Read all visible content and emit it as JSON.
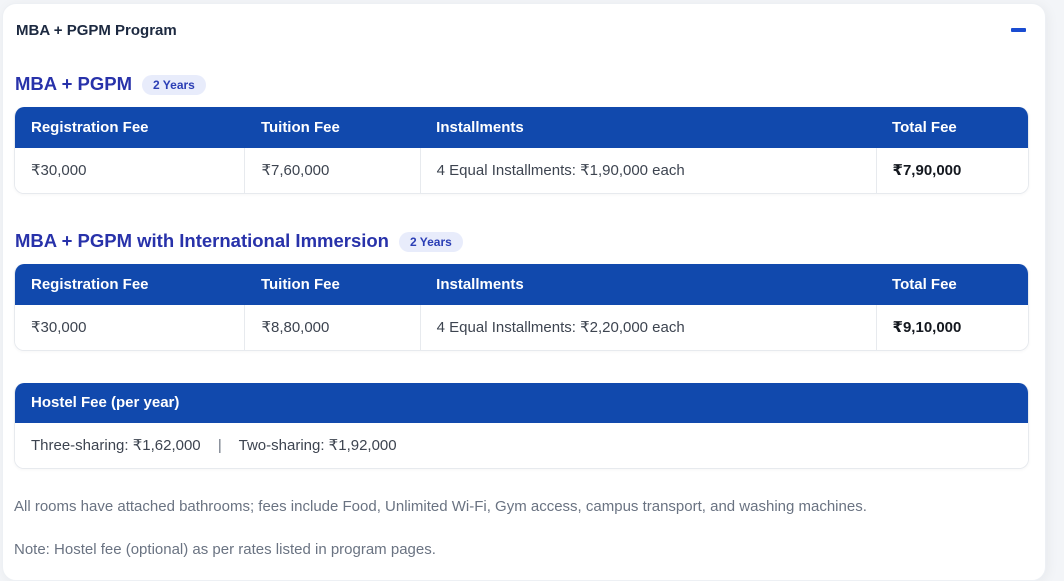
{
  "accordion": {
    "title": "MBA + PGPM Program",
    "state": "expanded",
    "collapse_icon": "minus-icon"
  },
  "colors": {
    "table_header_blue": "#1149ad",
    "section_title_blue": "#2832aa",
    "badge_bg": "#e8ecfb",
    "badge_text": "#2b3eb5",
    "minus_icon_blue": "#1a4cd1",
    "body_text": "#3d4450",
    "muted_text": "#6a7382"
  },
  "sections": [
    {
      "title": "MBA + PGPM",
      "badge": "2 Years",
      "table": {
        "headers": [
          "Registration Fee",
          "Tuition Fee",
          "Installments",
          "Total Fee"
        ],
        "rows": [
          [
            "₹30,000",
            "₹7,60,000",
            "4 Equal Installments: ₹1,90,000 each",
            "₹7,90,000"
          ]
        ]
      }
    },
    {
      "title": "MBA + PGPM with International Immersion",
      "badge": "2 Years",
      "table": {
        "headers": [
          "Registration Fee",
          "Tuition Fee",
          "Installments",
          "Total Fee"
        ],
        "rows": [
          [
            "₹30,000",
            "₹8,80,000",
            "4 Equal Installments: ₹2,20,000 each",
            "₹9,10,000"
          ]
        ]
      }
    }
  ],
  "hostel": {
    "header": "Hostel Fee (per year)",
    "three_sharing": "Three-sharing: ₹1,62,000",
    "separator": "|",
    "two_sharing": "Two-sharing: ₹1,92,000"
  },
  "footer": {
    "line1": "All rooms have attached bathrooms; fees include Food, Unlimited Wi-Fi, Gym access, campus transport, and washing machines.",
    "line2": "Note: Hostel fee (optional) as per rates listed in program pages."
  }
}
